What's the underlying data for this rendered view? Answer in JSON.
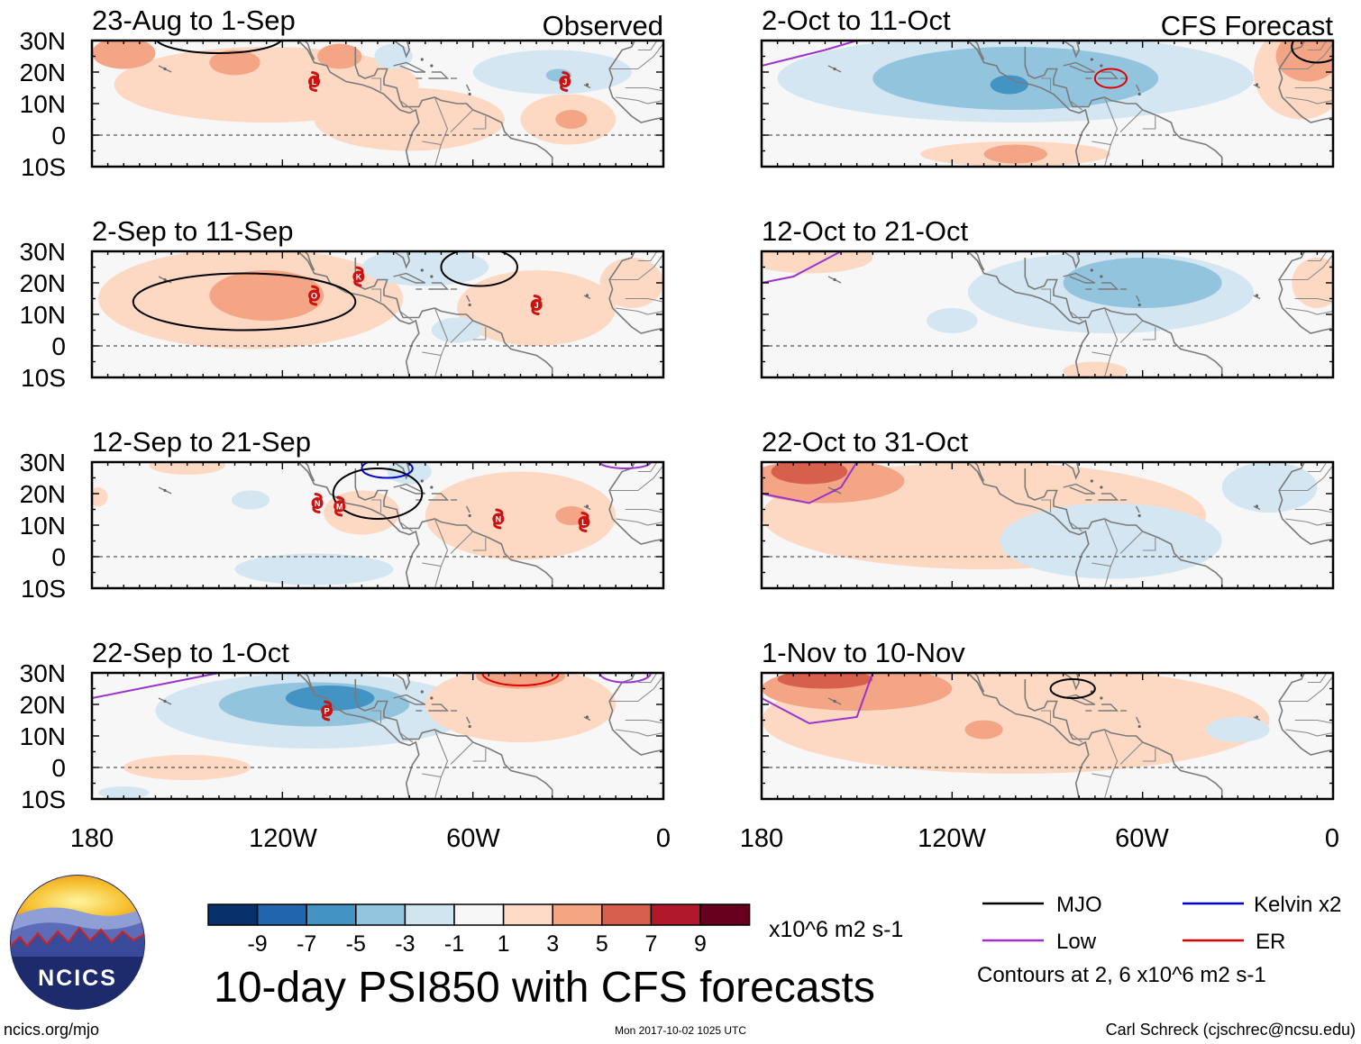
{
  "chart_data": {
    "type": "map-panel-grid",
    "title": "10-day PSI850 with CFS forecasts",
    "observed_label": "Observed",
    "forecast_label": "CFS Forecast",
    "lat_ticks": [
      "30N",
      "20N",
      "10N",
      "0",
      "10S"
    ],
    "lon_ticks": [
      "180",
      "120W",
      "60W",
      "0"
    ],
    "panels": [
      {
        "id": "obs1",
        "column": "observed",
        "row": 0,
        "period": "23-Aug to 1-Sep",
        "anoms": [
          {
            "sign": 1,
            "level": 1,
            "lon": -125,
            "lat": 16,
            "rx": 48,
            "ry": 12
          },
          {
            "sign": 1,
            "level": 1,
            "lon": -80,
            "lat": 5,
            "rx": 30,
            "ry": 10
          },
          {
            "sign": 1,
            "level": 1,
            "lon": -30,
            "lat": 5,
            "rx": 15,
            "ry": 8
          },
          {
            "sign": 1,
            "level": 2,
            "lon": -170,
            "lat": 26,
            "rx": 10,
            "ry": 5
          },
          {
            "sign": 1,
            "level": 2,
            "lon": -135,
            "lat": 23,
            "rx": 8,
            "ry": 4
          },
          {
            "sign": 1,
            "level": 2,
            "lon": -102,
            "lat": 25,
            "rx": 7,
            "ry": 4
          },
          {
            "sign": 1,
            "level": 2,
            "lon": -29,
            "lat": 5,
            "rx": 5,
            "ry": 3
          },
          {
            "sign": -1,
            "level": 1,
            "lon": -35,
            "lat": 20,
            "rx": 25,
            "ry": 7
          },
          {
            "sign": -1,
            "level": 1,
            "lon": -85,
            "lat": 25,
            "rx": 6,
            "ry": 4
          },
          {
            "sign": -1,
            "level": 2,
            "lon": -33,
            "lat": 19,
            "rx": 4,
            "ry": 2
          }
        ],
        "contours": [
          {
            "type": "MJO",
            "lon": -140,
            "lat": 31,
            "rx": 20,
            "ry": 5
          }
        ],
        "storms": [
          {
            "name": "L",
            "lon": -110,
            "lat": 17
          },
          {
            "name": "J",
            "lon": -31,
            "lat": 17
          }
        ]
      },
      {
        "id": "obs2",
        "column": "observed",
        "row": 1,
        "period": "2-Sep to 11-Sep",
        "anoms": [
          {
            "sign": 1,
            "level": 1,
            "lon": -130,
            "lat": 15,
            "rx": 48,
            "ry": 16
          },
          {
            "sign": 1,
            "level": 1,
            "lon": -40,
            "lat": 12,
            "rx": 25,
            "ry": 12
          },
          {
            "sign": 1,
            "level": 1,
            "lon": -10,
            "lat": 20,
            "rx": 10,
            "ry": 8
          },
          {
            "sign": 1,
            "level": 2,
            "lon": -125,
            "lat": 16,
            "rx": 18,
            "ry": 8
          },
          {
            "sign": -1,
            "level": 1,
            "lon": -75,
            "lat": 25,
            "rx": 20,
            "ry": 6
          },
          {
            "sign": -1,
            "level": 1,
            "lon": -65,
            "lat": 5,
            "rx": 8,
            "ry": 4
          }
        ],
        "contours": [
          {
            "type": "MJO",
            "lon": -132,
            "lat": 14,
            "rx": 35,
            "ry": 9
          },
          {
            "type": "MJO",
            "lon": -58,
            "lat": 25,
            "rx": 12,
            "ry": 6
          }
        ],
        "storms": [
          {
            "name": "O",
            "lon": -110,
            "lat": 16
          },
          {
            "name": "K",
            "lon": -96,
            "lat": 22
          },
          {
            "name": "J",
            "lon": -40,
            "lat": 13
          }
        ]
      },
      {
        "id": "obs3",
        "column": "observed",
        "row": 2,
        "period": "12-Sep to 21-Sep",
        "anoms": [
          {
            "sign": 1,
            "level": 1,
            "lon": -45,
            "lat": 13,
            "rx": 30,
            "ry": 14
          },
          {
            "sign": 1,
            "level": 1,
            "lon": -95,
            "lat": 14,
            "rx": 12,
            "ry": 7
          },
          {
            "sign": 1,
            "level": 1,
            "lon": -150,
            "lat": 29,
            "rx": 12,
            "ry": 3
          },
          {
            "sign": 1,
            "level": 1,
            "lon": -178,
            "lat": 19,
            "rx": 3,
            "ry": 3
          },
          {
            "sign": 1,
            "level": 2,
            "lon": -29,
            "lat": 13,
            "rx": 5,
            "ry": 3
          },
          {
            "sign": -1,
            "level": 1,
            "lon": -110,
            "lat": -4,
            "rx": 25,
            "ry": 5
          },
          {
            "sign": -1,
            "level": 1,
            "lon": -130,
            "lat": 18,
            "rx": 6,
            "ry": 3
          },
          {
            "sign": -1,
            "level": 1,
            "lon": -80,
            "lat": 27,
            "rx": 7,
            "ry": 4
          }
        ],
        "contours": [
          {
            "type": "MJO",
            "lon": -90,
            "lat": 20,
            "rx": 14,
            "ry": 8
          },
          {
            "type": "Kelvin",
            "lon": -87,
            "lat": 28,
            "rx": 8,
            "ry": 3
          },
          {
            "type": "Low",
            "lon": -12,
            "lat": 30,
            "rx": 8,
            "ry": 2
          }
        ],
        "storms": [
          {
            "name": "N",
            "lon": -109,
            "lat": 17
          },
          {
            "name": "M",
            "lon": -102,
            "lat": 16
          },
          {
            "name": "N",
            "lon": -52,
            "lat": 12
          },
          {
            "name": "L",
            "lon": -25,
            "lat": 11
          }
        ]
      },
      {
        "id": "obs4",
        "column": "observed",
        "row": 3,
        "period": "22-Sep to 1-Oct",
        "anoms": [
          {
            "sign": -1,
            "level": 1,
            "lon": -110,
            "lat": 18,
            "rx": 50,
            "ry": 12
          },
          {
            "sign": -1,
            "level": 2,
            "lon": -110,
            "lat": 20,
            "rx": 30,
            "ry": 7
          },
          {
            "sign": -1,
            "level": 3,
            "lon": -105,
            "lat": 22,
            "rx": 14,
            "ry": 4
          },
          {
            "sign": 1,
            "level": 1,
            "lon": -45,
            "lat": 20,
            "rx": 30,
            "ry": 12
          },
          {
            "sign": 1,
            "level": 1,
            "lon": -150,
            "lat": 0,
            "rx": 20,
            "ry": 4
          },
          {
            "sign": 1,
            "level": 2,
            "lon": -45,
            "lat": 29,
            "rx": 14,
            "ry": 4
          },
          {
            "sign": -1,
            "level": 1,
            "lon": -170,
            "lat": -8,
            "rx": 8,
            "ry": 2
          }
        ],
        "contours": [
          {
            "type": "ER",
            "lon": -45,
            "lat": 30,
            "rx": 12,
            "ry": 4
          },
          {
            "type": "Low",
            "lon": -12,
            "lat": 30,
            "rx": 8,
            "ry": 3
          }
        ],
        "lines": [
          {
            "type": "Low",
            "points": [
              [
                -180,
                22
              ],
              [
                -150,
                28
              ],
              [
                -140,
                30
              ]
            ]
          }
        ],
        "storms": [
          {
            "name": "P",
            "lon": -106,
            "lat": 18
          }
        ]
      },
      {
        "id": "fc1",
        "column": "forecast",
        "row": 0,
        "period": "2-Oct to 11-Oct",
        "anoms": [
          {
            "sign": -1,
            "level": 1,
            "lon": -100,
            "lat": 18,
            "rx": 75,
            "ry": 14
          },
          {
            "sign": -1,
            "level": 2,
            "lon": -100,
            "lat": 18,
            "rx": 45,
            "ry": 10
          },
          {
            "sign": -1,
            "level": 3,
            "lon": -102,
            "lat": 16,
            "rx": 6,
            "ry": 3
          },
          {
            "sign": 1,
            "level": 1,
            "lon": -100,
            "lat": -6,
            "rx": 30,
            "ry": 4
          },
          {
            "sign": 1,
            "level": 2,
            "lon": -100,
            "lat": -6,
            "rx": 10,
            "ry": 3
          },
          {
            "sign": 1,
            "level": 1,
            "lon": -10,
            "lat": 20,
            "rx": 15,
            "ry": 15
          },
          {
            "sign": 1,
            "level": 2,
            "lon": -8,
            "lat": 25,
            "rx": 10,
            "ry": 8
          }
        ],
        "contours": [
          {
            "type": "ER",
            "lon": -70,
            "lat": 18,
            "rx": 5,
            "ry": 3
          },
          {
            "type": "MJO",
            "lon": -5,
            "lat": 28,
            "rx": 8,
            "ry": 5
          }
        ],
        "lines": [
          {
            "type": "Low",
            "points": [
              [
                -180,
                22
              ],
              [
                -160,
                27
              ],
              [
                -150,
                30
              ]
            ]
          }
        ],
        "storms": []
      },
      {
        "id": "fc2",
        "column": "forecast",
        "row": 1,
        "period": "12-Oct to 21-Oct",
        "anoms": [
          {
            "sign": -1,
            "level": 1,
            "lon": -70,
            "lat": 17,
            "rx": 45,
            "ry": 13
          },
          {
            "sign": -1,
            "level": 2,
            "lon": -60,
            "lat": 20,
            "rx": 25,
            "ry": 8
          },
          {
            "sign": -1,
            "level": 1,
            "lon": -120,
            "lat": 8,
            "rx": 8,
            "ry": 4
          },
          {
            "sign": 1,
            "level": 1,
            "lon": -165,
            "lat": 28,
            "rx": 20,
            "ry": 5
          },
          {
            "sign": 1,
            "level": 1,
            "lon": -75,
            "lat": -8,
            "rx": 10,
            "ry": 3
          },
          {
            "sign": 1,
            "level": 1,
            "lon": -5,
            "lat": 20,
            "rx": 8,
            "ry": 8
          }
        ],
        "contours": [],
        "lines": [
          {
            "type": "Low",
            "points": [
              [
                -180,
                20
              ],
              [
                -170,
                22
              ],
              [
                -155,
                30
              ]
            ]
          }
        ],
        "storms": []
      },
      {
        "id": "fc3",
        "column": "forecast",
        "row": 2,
        "period": "22-Oct to 31-Oct",
        "anoms": [
          {
            "sign": 1,
            "level": 1,
            "lon": -110,
            "lat": 13,
            "rx": 70,
            "ry": 17
          },
          {
            "sign": 1,
            "level": 2,
            "lon": -160,
            "lat": 24,
            "rx": 25,
            "ry": 7
          },
          {
            "sign": 1,
            "level": 3,
            "lon": -165,
            "lat": 27,
            "rx": 12,
            "ry": 4
          },
          {
            "sign": -1,
            "level": 1,
            "lon": -70,
            "lat": 5,
            "rx": 35,
            "ry": 12
          },
          {
            "sign": -1,
            "level": 1,
            "lon": -20,
            "lat": 22,
            "rx": 15,
            "ry": 8
          }
        ],
        "contours": [],
        "lines": [
          {
            "type": "Low",
            "points": [
              [
                -180,
                20
              ],
              [
                -165,
                17
              ],
              [
                -155,
                22
              ],
              [
                -150,
                30
              ]
            ]
          }
        ],
        "storms": []
      },
      {
        "id": "fc4",
        "column": "forecast",
        "row": 3,
        "period": "1-Nov to 10-Nov",
        "anoms": [
          {
            "sign": 1,
            "level": 1,
            "lon": -100,
            "lat": 15,
            "rx": 80,
            "ry": 17
          },
          {
            "sign": 1,
            "level": 2,
            "lon": -150,
            "lat": 25,
            "rx": 30,
            "ry": 7
          },
          {
            "sign": 1,
            "level": 3,
            "lon": -160,
            "lat": 28,
            "rx": 15,
            "ry": 3
          },
          {
            "sign": 1,
            "level": 2,
            "lon": -110,
            "lat": 12,
            "rx": 6,
            "ry": 3
          },
          {
            "sign": -1,
            "level": 1,
            "lon": -30,
            "lat": 12,
            "rx": 10,
            "ry": 4
          }
        ],
        "contours": [
          {
            "type": "MJO",
            "lon": -82,
            "lat": 25,
            "rx": 7,
            "ry": 3
          }
        ],
        "lines": [
          {
            "type": "Low",
            "points": [
              [
                -180,
                22
              ],
              [
                -165,
                14
              ],
              [
                -150,
                16
              ],
              [
                -145,
                30
              ]
            ]
          }
        ],
        "storms": []
      }
    ],
    "colorbar": {
      "colors": [
        "#08306b",
        "#2166ac",
        "#4393c3",
        "#92c5de",
        "#d1e5f0",
        "#f7f7f7",
        "#fddbc7",
        "#f4a582",
        "#d6604d",
        "#b2182b",
        "#67001f"
      ],
      "labels": [
        "-9",
        "-7",
        "-5",
        "-3",
        "-1",
        "1",
        "3",
        "5",
        "7",
        "9"
      ],
      "units": "x10^6 m2 s-1"
    },
    "legend": [
      {
        "label": "MJO",
        "color": "#000000"
      },
      {
        "label": "Kelvin x2",
        "color": "#0000cc"
      },
      {
        "label": "Low",
        "color": "#9933cc"
      },
      {
        "label": "ER",
        "color": "#dd0000"
      }
    ],
    "contour_note": "Contours at 2, 6 x10^6 m2 s-1"
  },
  "footer": {
    "org_url": "ncics.org/mjo",
    "timestamp": "Mon 2017-10-02 1025 UTC",
    "author": "Carl Schreck (cjschrec@ncsu.edu)",
    "logo_text": "NCICS"
  },
  "palette": {
    "pos": [
      "#fdd9c3",
      "#f3a585",
      "#d7604d"
    ],
    "neg": [
      "#d3e6f1",
      "#93c4de",
      "#4393c3"
    ],
    "mjo": "#000000",
    "kelvin": "#0000cc",
    "low": "#9933cc",
    "er": "#dd0000",
    "storm": "#cc1111"
  }
}
